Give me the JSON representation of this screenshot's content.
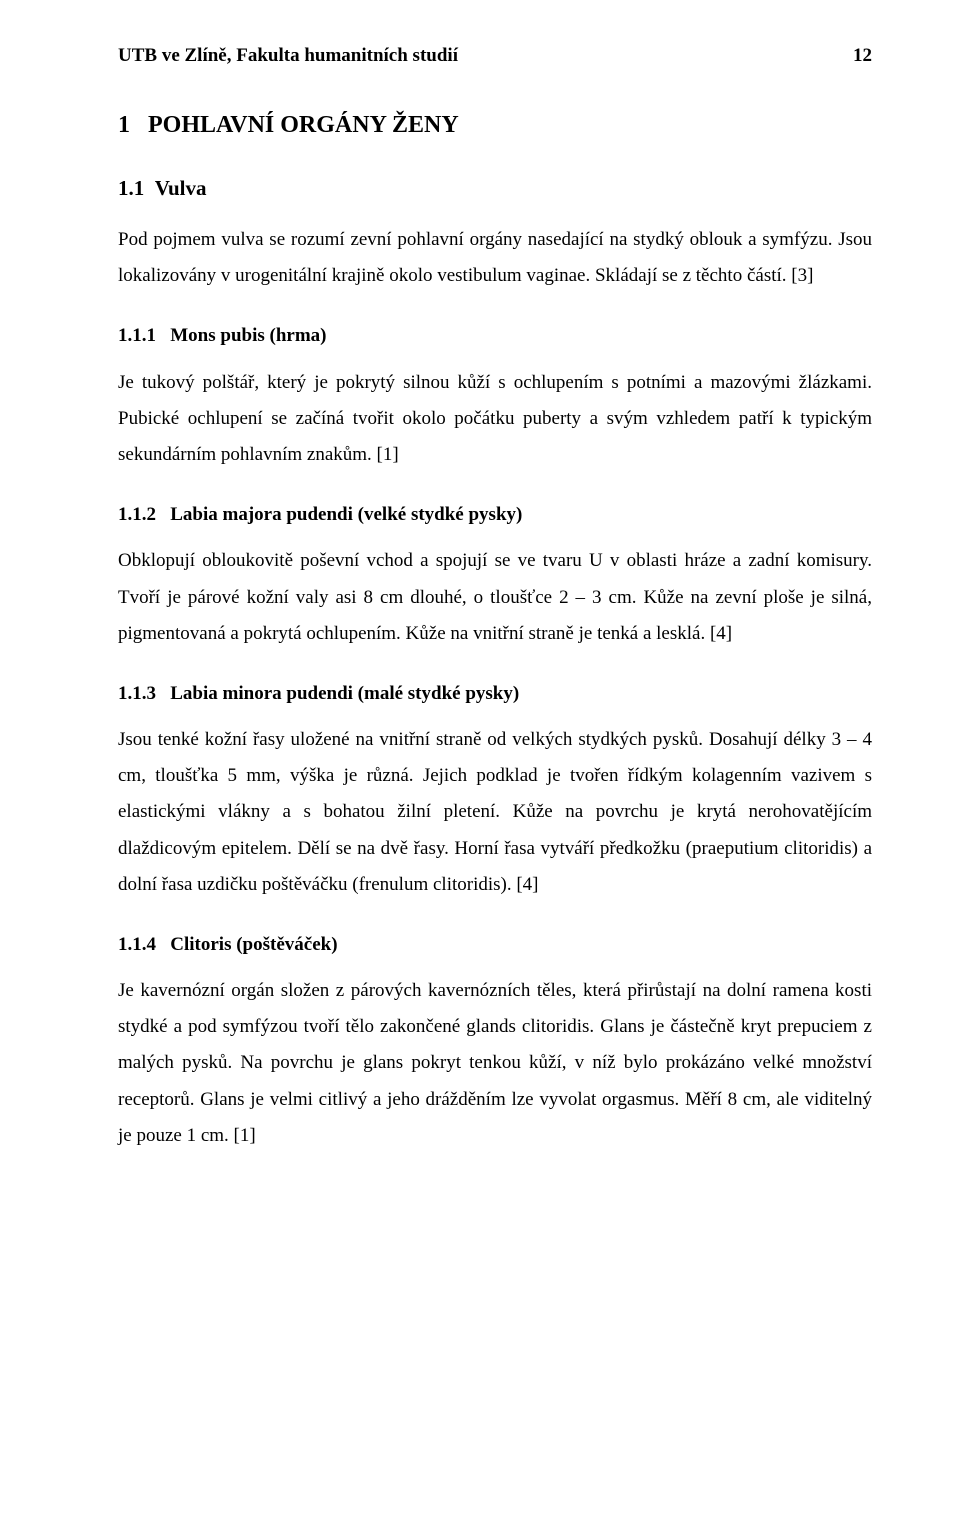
{
  "header": {
    "left": "UTB ve Zlíně, Fakulta humanitních studií",
    "page_number": "12"
  },
  "section": {
    "h1_number": "1",
    "h1_title": "POHLAVNÍ ORGÁNY ŽENY",
    "h2_number": "1.1",
    "h2_title": "Vulva",
    "p1": "Pod pojmem vulva se rozumí zevní pohlavní orgány nasedající na stydký oblouk a symfýzu. Jsou lokalizovány v urogenitální krajině okolo vestibulum vaginae. Skládají se z těchto částí. [3]",
    "sub1": {
      "num": "1.1.1",
      "title": "Mons pubis (hrma)",
      "p": "Je tukový polštář, který je pokrytý silnou kůží s ochlupením s potními a mazovými žlázkami. Pubické ochlupení se začíná tvořit okolo počátku puberty a svým vzhledem patří k typickým sekundárním pohlavním znakům. [1]"
    },
    "sub2": {
      "num": "1.1.2",
      "title": "Labia majora pudendi (velké stydké pysky)",
      "p": "Obklopují obloukovitě poševní vchod a spojují se ve tvaru U v oblasti hráze a zadní komisury. Tvoří je párové kožní valy asi 8 cm dlouhé, o tloušťce 2 – 3 cm. Kůže na zevní ploše je silná, pigmentovaná a pokrytá ochlupením. Kůže na vnitřní straně je tenká a lesklá. [4]"
    },
    "sub3": {
      "num": "1.1.3",
      "title": "Labia minora pudendi (malé stydké pysky)",
      "p": "Jsou tenké kožní řasy uložené na vnitřní straně od velkých stydkých pysků. Dosahují délky 3 – 4 cm, tloušťka 5 mm, výška je různá. Jejich podklad je tvořen řídkým kolagenním vazivem s elastickými vlákny a s bohatou žilní pletení. Kůže na povrchu je krytá nerohovatějícím dlaždicovým epitelem. Dělí se na dvě řasy. Horní řasa vytváří předkožku (praeputium clitoridis) a dolní řasa uzdičku poštěváčku (frenulum clitoridis). [4]"
    },
    "sub4": {
      "num": "1.1.4",
      "title": "Clitoris (poštěváček)",
      "p": "Je kavernózní orgán složen z párových kavernózních těles, která přirůstají na dolní ramena kosti stydké a pod symfýzou tvoří tělo zakončené glands clitoridis. Glans je částečně kryt prepuciem z malých pysků. Na povrchu je glans pokryt tenkou kůží, v níž bylo prokázáno velké množství receptorů. Glans je velmi citlivý a jeho drážděním lze vyvolat orgasmus. Měří 8 cm, ale viditelný je pouze 1 cm. [1]"
    }
  }
}
